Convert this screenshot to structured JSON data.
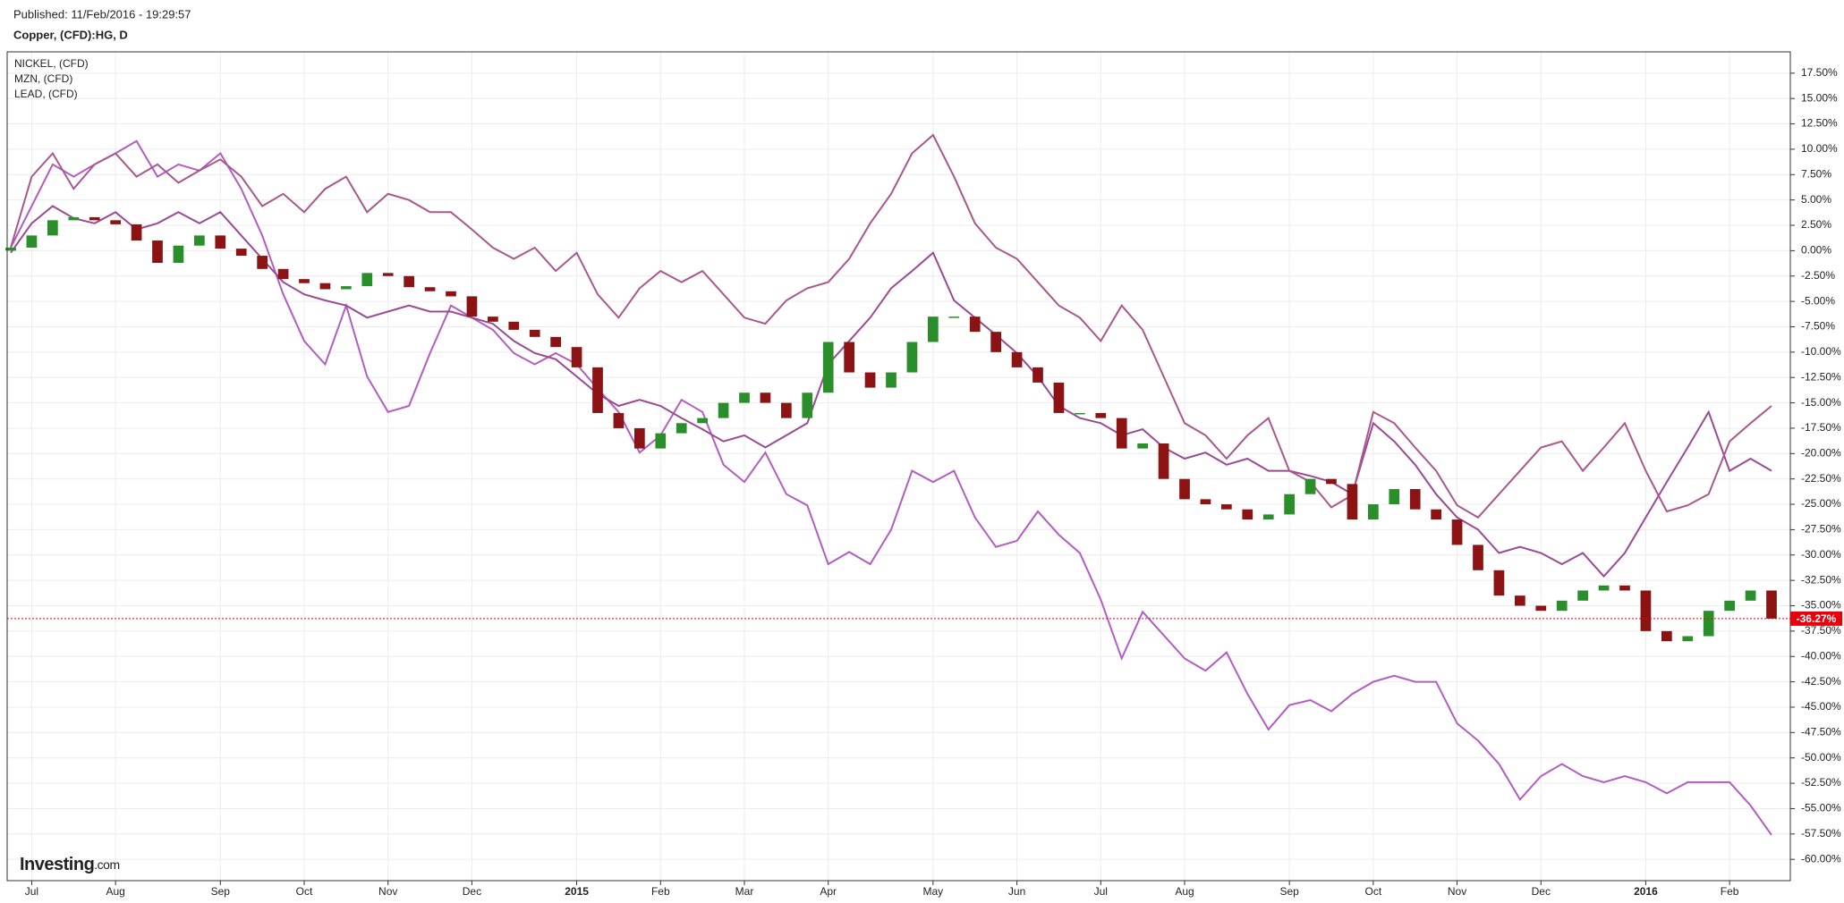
{
  "published": "Published: 11/Feb/2016 - 19:29:57",
  "chart_data": {
    "type": "candlestick",
    "title": "Copper, (CFD):HG, D",
    "brand": {
      "name": "Investing",
      "suffix": ".com"
    },
    "categories": [
      null,
      "Jul",
      null,
      null,
      null,
      "Aug",
      null,
      null,
      null,
      null,
      "Sep",
      null,
      null,
      null,
      "Oct",
      null,
      null,
      null,
      "Nov",
      null,
      null,
      null,
      "Dec",
      null,
      null,
      null,
      null,
      "2015",
      null,
      null,
      null,
      "Feb",
      null,
      null,
      null,
      "Mar",
      null,
      null,
      null,
      "Apr",
      null,
      null,
      null,
      null,
      "May",
      null,
      null,
      null,
      "Jun",
      null,
      null,
      null,
      "Jul",
      null,
      null,
      null,
      "Aug",
      null,
      null,
      null,
      null,
      "Sep",
      null,
      null,
      null,
      "Oct",
      null,
      null,
      null,
      "Nov",
      null,
      null,
      null,
      "Dec",
      null,
      null,
      null,
      null,
      "2016",
      null,
      null,
      null,
      "Feb",
      null,
      null
    ],
    "candles": {
      "up_color": "#2a8f2a",
      "down_color": "#8b1313",
      "open": [
        0,
        0.3,
        1.5,
        3.0,
        3.3,
        3.0,
        2.6,
        1.0,
        -1.2,
        0.5,
        1.5,
        0.2,
        -0.5,
        -1.8,
        -2.8,
        -3.2,
        -3.8,
        -3.5,
        -2.2,
        -2.5,
        -3.6,
        -4.0,
        -4.5,
        -6.5,
        -7.0,
        -7.8,
        -8.5,
        -9.5,
        -11.5,
        -16.0,
        -17.5,
        -19.5,
        -18.0,
        -17.0,
        -16.5,
        -15.0,
        -14.0,
        -15.0,
        -16.5,
        -14.0,
        -9.0,
        -12.0,
        -13.5,
        -12.0,
        -9.0,
        -6.5,
        -6.5,
        -8.0,
        -10.0,
        -11.5,
        -13.0,
        -16.0,
        -16.0,
        -16.5,
        -19.5,
        -19.0,
        -22.5,
        -24.5,
        -25.0,
        -25.5,
        -26.5,
        -26.0,
        -24.0,
        -22.5,
        -23.0,
        -26.5,
        -25.0,
        -23.5,
        -25.5,
        -26.5,
        -29.0,
        -31.5,
        -34.0,
        -35.0,
        -35.5,
        -34.5,
        -33.5,
        -33.0,
        -33.5,
        -37.5,
        -38.5,
        -38.0,
        -35.5,
        -34.5,
        -33.5
      ],
      "close": [
        0.3,
        1.5,
        3.0,
        3.3,
        3.0,
        2.6,
        1.0,
        -1.2,
        0.5,
        1.5,
        0.2,
        -0.5,
        -1.8,
        -2.8,
        -3.2,
        -3.8,
        -3.5,
        -2.2,
        -2.5,
        -3.6,
        -4.0,
        -4.5,
        -6.5,
        -7.0,
        -7.8,
        -8.5,
        -9.5,
        -11.5,
        -16.0,
        -17.5,
        -19.5,
        -18.0,
        -17.0,
        -16.5,
        -15.0,
        -14.0,
        -15.0,
        -16.5,
        -14.0,
        -9.0,
        -12.0,
        -13.5,
        -12.0,
        -9.0,
        -6.5,
        -6.5,
        -8.0,
        -10.0,
        -11.5,
        -13.0,
        -16.0,
        -16.0,
        -16.5,
        -19.5,
        -19.0,
        -22.5,
        -24.5,
        -25.0,
        -25.5,
        -26.5,
        -26.0,
        -24.0,
        -22.5,
        -23.0,
        -26.5,
        -25.0,
        -23.5,
        -25.5,
        -26.5,
        -29.0,
        -31.5,
        -34.0,
        -35.0,
        -35.5,
        -34.5,
        -33.5,
        -33.0,
        -33.5,
        -37.5,
        -38.5,
        -38.0,
        -35.5,
        -34.5,
        -33.5,
        -36.27
      ]
    },
    "current": {
      "value": -36.27,
      "label": "-36.27%",
      "color": "#e8000b"
    },
    "series": [
      {
        "name": "NICKEL,  (CFD)",
        "color": "#b35cc2",
        "values": [
          0.3,
          4.4,
          8.5,
          7.3,
          8.5,
          9.6,
          10.8,
          7.3,
          8.5,
          7.9,
          9.6,
          6.1,
          1.5,
          -4.3,
          -8.9,
          -11.2,
          -5.4,
          -12.4,
          -15.9,
          -15.3,
          -10.1,
          -5.4,
          -6.6,
          -7.8,
          -10.1,
          -11.2,
          -10.1,
          -11.2,
          -13.6,
          -15.9,
          -19.9,
          -18.2,
          -14.7,
          -15.9,
          -21.1,
          -22.8,
          -19.9,
          -24.0,
          -25.1,
          -30.9,
          -29.7,
          -30.9,
          -27.5,
          -21.7,
          -22.8,
          -21.7,
          -26.3,
          -29.2,
          -28.6,
          -25.7,
          -28.0,
          -29.8,
          -34.4,
          -40.2,
          -35.6,
          -37.9,
          -40.2,
          -41.4,
          -39.6,
          -43.7,
          -47.2,
          -44.8,
          -44.3,
          -45.4,
          -43.7,
          -42.5,
          -41.9,
          -42.5,
          -42.5,
          -46.6,
          -48.3,
          -50.6,
          -54.1,
          -51.8,
          -50.6,
          -51.8,
          -52.4,
          -51.8,
          -52.4,
          -53.5,
          -52.4,
          -52.4,
          -52.4,
          -54.7,
          -57.6
        ]
      },
      {
        "name": "MZN,  (CFD)",
        "color": "#9a4a92",
        "values": [
          -0.2,
          2.7,
          4.4,
          3.2,
          2.7,
          3.8,
          2.1,
          2.7,
          3.8,
          2.7,
          3.8,
          1.5,
          -0.8,
          -3.1,
          -4.3,
          -4.9,
          -5.4,
          -6.6,
          -6.0,
          -5.4,
          -6.0,
          -6.0,
          -6.6,
          -7.2,
          -8.9,
          -10.1,
          -10.7,
          -12.4,
          -14.1,
          -15.3,
          -14.7,
          -15.3,
          -16.5,
          -17.6,
          -18.8,
          -18.2,
          -19.4,
          -18.2,
          -17.0,
          -11.2,
          -8.9,
          -6.6,
          -3.7,
          -2.0,
          -0.2,
          -4.9,
          -6.6,
          -8.3,
          -10.1,
          -12.4,
          -15.3,
          -16.5,
          -17.0,
          -18.2,
          -17.6,
          -19.4,
          -20.5,
          -19.9,
          -21.1,
          -20.5,
          -21.7,
          -21.7,
          -22.2,
          -22.8,
          -24.0,
          -17.0,
          -18.8,
          -21.1,
          -24.0,
          -26.3,
          -27.5,
          -29.8,
          -29.2,
          -29.8,
          -30.9,
          -29.8,
          -32.1,
          -29.8,
          -26.3,
          -22.8,
          -19.4,
          -15.9,
          -21.7,
          -20.5,
          -21.7
        ]
      },
      {
        "name": "LEAD,  (CFD)",
        "color": "#a8588c",
        "values": [
          0.3,
          7.3,
          9.6,
          6.1,
          8.5,
          9.6,
          7.3,
          8.5,
          6.7,
          7.9,
          9.0,
          7.3,
          4.4,
          5.6,
          3.8,
          6.1,
          7.3,
          3.8,
          5.6,
          5.0,
          3.8,
          3.8,
          2.1,
          0.3,
          -0.8,
          0.3,
          -2.0,
          -0.2,
          -4.3,
          -6.6,
          -3.7,
          -2.0,
          -3.1,
          -2.0,
          -4.3,
          -6.6,
          -7.2,
          -4.9,
          -3.7,
          -3.1,
          -0.8,
          2.7,
          5.6,
          9.6,
          11.4,
          7.3,
          2.7,
          0.3,
          -0.8,
          -3.1,
          -5.4,
          -6.6,
          -8.9,
          -5.4,
          -7.8,
          -12.4,
          -17.0,
          -18.2,
          -20.5,
          -18.2,
          -16.5,
          -21.7,
          -22.8,
          -25.3,
          -24.1,
          -15.9,
          -17.0,
          -19.4,
          -21.7,
          -25.1,
          -26.3,
          -24.0,
          -21.7,
          -19.4,
          -18.8,
          -21.7,
          -19.4,
          -17.0,
          -21.7,
          -25.7,
          -25.1,
          -24.0,
          -18.8,
          -17.0,
          -15.3
        ]
      }
    ],
    "ylim": [
      -62.1,
      19.6
    ],
    "yticks": [
      {
        "value": 17.5,
        "label": "17.50%"
      },
      {
        "value": 15,
        "label": "15.00%"
      },
      {
        "value": 12.5,
        "label": "12.50%"
      },
      {
        "value": 10,
        "label": "10.00%"
      },
      {
        "value": 7.5,
        "label": "7.50%"
      },
      {
        "value": 5,
        "label": "5.00%"
      },
      {
        "value": 2.5,
        "label": "2.50%"
      },
      {
        "value": 0,
        "label": "0.00%"
      },
      {
        "value": -2.5,
        "label": "-2.50%"
      },
      {
        "value": -5,
        "label": "-5.00%"
      },
      {
        "value": -7.5,
        "label": "-7.50%"
      },
      {
        "value": -10,
        "label": "-10.00%"
      },
      {
        "value": -12.5,
        "label": "-12.50%"
      },
      {
        "value": -15,
        "label": "-15.00%"
      },
      {
        "value": -17.5,
        "label": "-17.50%"
      },
      {
        "value": -20,
        "label": "-20.00%"
      },
      {
        "value": -22.5,
        "label": "-22.50%"
      },
      {
        "value": -25,
        "label": "-25.00%"
      },
      {
        "value": -27.5,
        "label": "-27.50%"
      },
      {
        "value": -30,
        "label": "-30.00%"
      },
      {
        "value": -32.5,
        "label": "-32.50%"
      },
      {
        "value": -35,
        "label": "-35.00%"
      },
      {
        "value": -37.5,
        "label": "-37.50%"
      },
      {
        "value": -40,
        "label": "-40.00%"
      },
      {
        "value": -42.5,
        "label": "-42.50%"
      },
      {
        "value": -45,
        "label": "-45.00%"
      },
      {
        "value": -47.5,
        "label": "-47.50%"
      },
      {
        "value": -50,
        "label": "-50.00%"
      },
      {
        "value": -52.5,
        "label": "-52.50%"
      },
      {
        "value": -55,
        "label": "-55.00%"
      },
      {
        "value": -57.5,
        "label": "-57.50%"
      },
      {
        "value": -60,
        "label": "-60.00%"
      }
    ],
    "grid": true
  }
}
